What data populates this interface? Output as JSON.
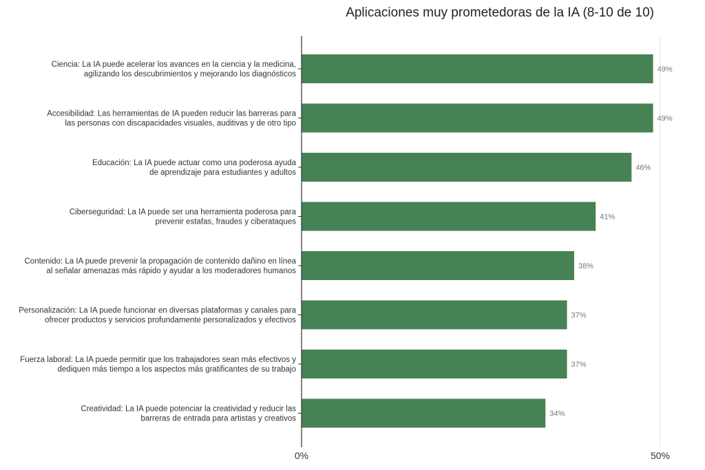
{
  "chart_data": {
    "type": "bar",
    "orientation": "horizontal",
    "title": "Aplicaciones muy prometedoras de la IA (8-10 de 10)",
    "categories": [
      [
        "Ciencia: La IA puede acelerar los avances en la ciencia y la medicina,",
        "agilizando los descubrimientos y mejorando los diagnósticos"
      ],
      [
        "Accesibilidad: Las herramientas de IA pueden reducir las barreras para",
        "las personas con discapacidades visuales, auditivas y de otro tipo"
      ],
      [
        "Educación: La IA puede actuar como una poderosa ayuda",
        "de aprendizaje para estudiantes y adultos"
      ],
      [
        "Ciberseguridad: La IA puede ser una herramienta poderosa para",
        "prevenir estafas, fraudes y ciberataques"
      ],
      [
        "Contenido: La IA puede prevenir la propagación de contenido dañino en línea",
        "al señalar amenazas más rápido y ayudar a los moderadores humanos"
      ],
      [
        "Personalización: La IA puede funcionar en diversas plataformas y canales para",
        "ofrecer productos y servicios profundamente personalizados y efectivos"
      ],
      [
        "Fuerza laboral: La IA puede permitir que los trabajadores sean más efectivos y",
        "dediquen más tiempo a los aspectos más gratificantes de su trabajo"
      ],
      [
        "Creatividad: La IA puede potenciar la creatividad y reducir las",
        "barreras de entrada para artistas y creativos"
      ]
    ],
    "values": [
      49,
      49,
      46,
      41,
      38,
      37,
      37,
      34
    ],
    "data_labels": [
      "49%",
      "49%",
      "46%",
      "41%",
      "38%",
      "37%",
      "37%",
      "34%"
    ],
    "xlim": [
      0,
      50
    ],
    "x_ticks": [
      "0%",
      "50%"
    ],
    "grid": true,
    "bar_color": "#468254",
    "xlabel": "",
    "ylabel": ""
  }
}
